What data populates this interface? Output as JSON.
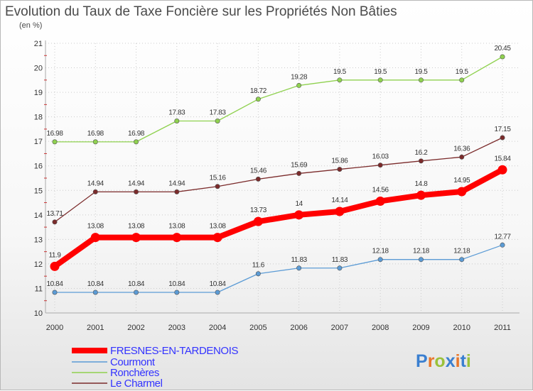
{
  "title": "Evolution du Taux de Taxe Foncière sur les Propriétés Non Bâties",
  "unit_label": "(en %)",
  "brand": {
    "letters": [
      "P",
      "r",
      "o",
      "x",
      "i",
      "t",
      "i"
    ],
    "colors": [
      "#3a7fd0",
      "#e8762a",
      "#9ac13a",
      "#3a7fd0",
      "#e8762a",
      "#3a7fd0",
      "#9ac13a"
    ]
  },
  "chart_data": {
    "type": "line",
    "categories": [
      "2000",
      "2001",
      "2002",
      "2003",
      "2004",
      "2005",
      "2006",
      "2007",
      "2008",
      "2009",
      "2010",
      "2011"
    ],
    "ylim": [
      10,
      21
    ],
    "yticks": [
      "10",
      "11",
      "12",
      "13",
      "14",
      "15",
      "16",
      "17",
      "18",
      "19",
      "20",
      "21"
    ],
    "grid": true,
    "legend_position": "bottom-left",
    "series": [
      {
        "name": "FRESNES-EN-TARDENOIS",
        "color": "#ff0000",
        "legend_text_color": "#3333ff",
        "values": [
          11.9,
          13.08,
          13.08,
          13.08,
          13.08,
          13.73,
          14,
          14.14,
          14.56,
          14.8,
          14.95,
          15.84
        ],
        "labels": [
          "11.9",
          "13.08",
          "13.08",
          "13.08",
          "13.08",
          "13.73",
          "14",
          "14.14",
          "14.56",
          "14.8",
          "14.95",
          "15.84"
        ]
      },
      {
        "name": "Courmont",
        "color": "#5b9bd5",
        "legend_text_color": "#3333ff",
        "values": [
          10.84,
          10.84,
          10.84,
          10.84,
          10.84,
          11.6,
          11.83,
          11.83,
          12.18,
          12.18,
          12.18,
          12.77
        ],
        "labels": [
          "10.84",
          "10.84",
          "10.84",
          "10.84",
          "10.84",
          "11.6",
          "11.83",
          "11.83",
          "12.18",
          "12.18",
          "12.18",
          "12.77"
        ]
      },
      {
        "name": "Ronchères",
        "color": "#8fd14f",
        "legend_text_color": "#3333ff",
        "values": [
          16.98,
          16.98,
          16.98,
          17.83,
          17.83,
          18.72,
          19.28,
          19.5,
          19.5,
          19.5,
          19.5,
          20.45
        ],
        "labels": [
          "16.98",
          "16.98",
          "16.98",
          "17.83",
          "17.83",
          "18.72",
          "19.28",
          "19.5",
          "19.5",
          "19.5",
          "19.5",
          "20.45"
        ]
      },
      {
        "name": "Le Charmel",
        "color": "#7b2b2b",
        "legend_text_color": "#3333ff",
        "values": [
          13.71,
          14.94,
          14.94,
          14.94,
          15.16,
          15.46,
          15.69,
          15.86,
          16.03,
          16.2,
          16.36,
          17.15
        ],
        "labels": [
          "13.71",
          "14.94",
          "14.94",
          "14.94",
          "15.16",
          "15.46",
          "15.69",
          "15.86",
          "16.03",
          "16.2",
          "16.36",
          "17.15"
        ]
      }
    ]
  }
}
